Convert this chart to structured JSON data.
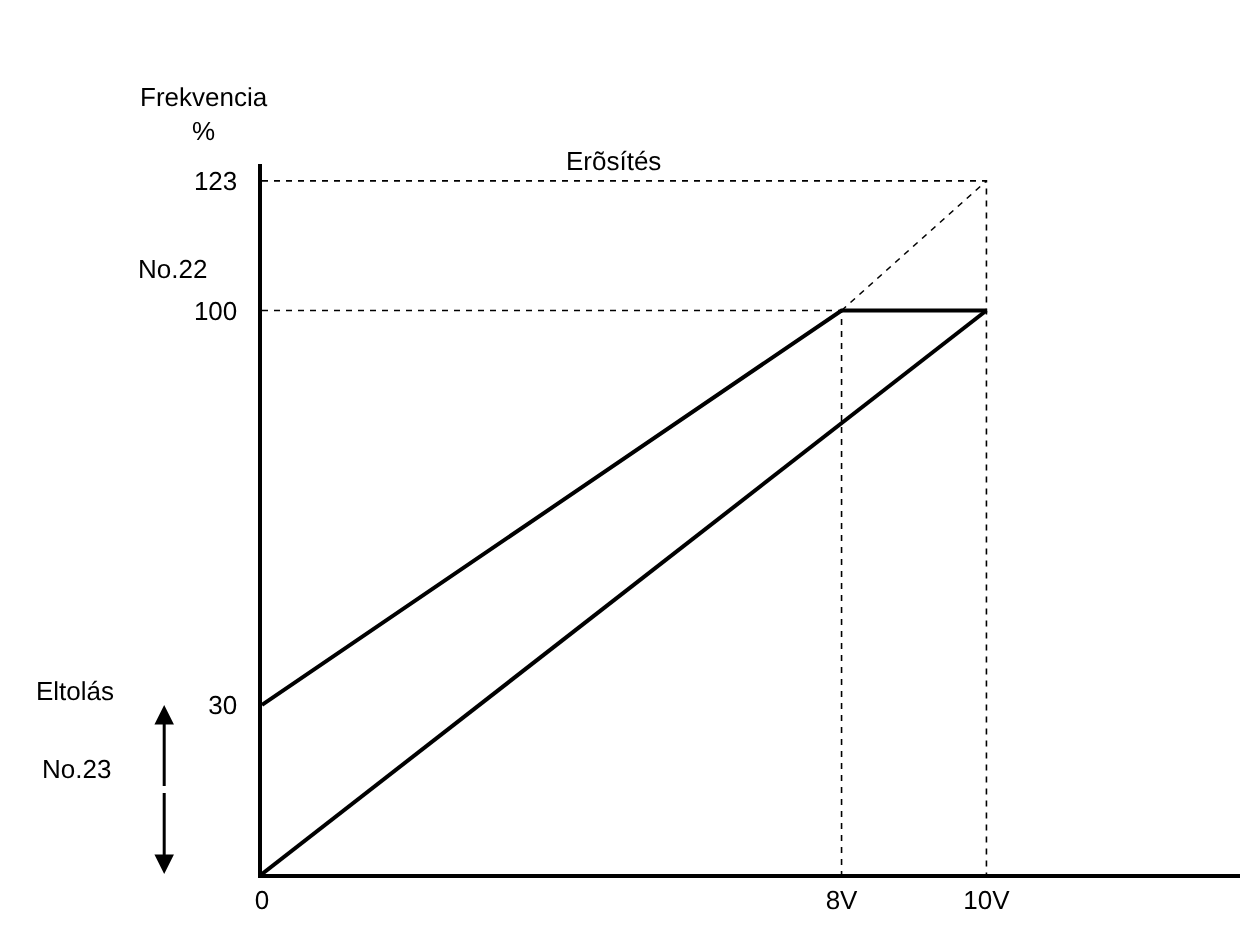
{
  "chart_data": {
    "type": "line",
    "ylabel": "Frekvencia\n%",
    "series": [
      {
        "x": [
          0,
          8,
          10
        ],
        "values": [
          30,
          100,
          100
        ],
        "color": "#000000",
        "line_style": "solid"
      },
      {
        "x": [
          0,
          10
        ],
        "values": [
          0,
          100
        ],
        "color": "#000000",
        "line_style": "solid"
      },
      {
        "x": [
          8,
          10
        ],
        "values": [
          100,
          123
        ],
        "color": "#000000",
        "line_style": "dotted"
      },
      {
        "x": [
          0,
          10,
          10
        ],
        "values": [
          123,
          123,
          0
        ],
        "color": "#000000",
        "line_style": "dotted"
      },
      {
        "x": [
          0,
          8,
          8
        ],
        "values": [
          100,
          100,
          0
        ],
        "color": "#000000",
        "line_style": "dotted"
      }
    ],
    "xlim": [
      0,
      13.5
    ],
    "ylim": [
      0,
      126
    ],
    "xticks": [
      {
        "value": 0,
        "label": "0"
      },
      {
        "value": 8,
        "label": "8V"
      },
      {
        "value": 10,
        "label": "10V"
      }
    ],
    "yticks": [
      30,
      100,
      123
    ],
    "annotations": [
      "Erõsítés",
      "No.22",
      "Eltolás",
      "No.23"
    ],
    "marker": "none"
  }
}
